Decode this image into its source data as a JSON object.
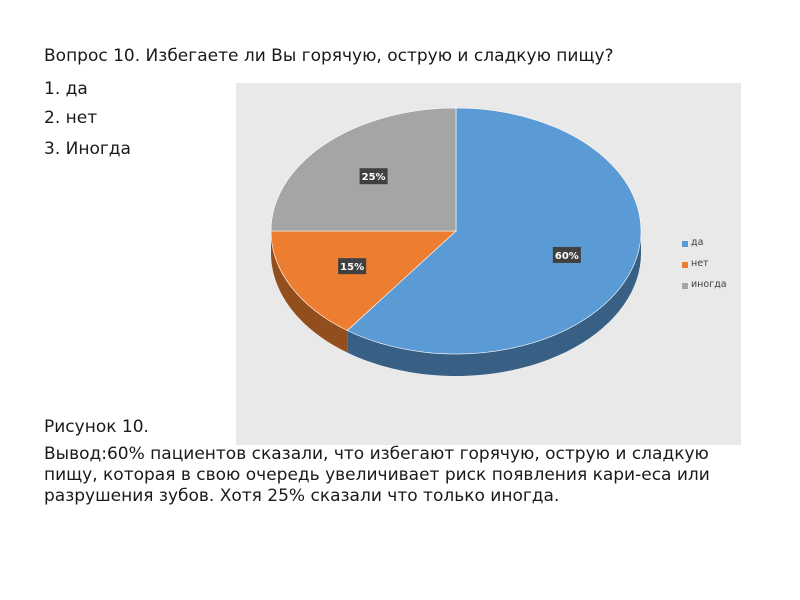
{
  "question": {
    "title": "Вопрос 10. Избегаете ли Вы горячую, острую и сладкую пищу?",
    "options": [
      "1. да",
      "2. нет",
      "3. Иногда"
    ]
  },
  "caption": "Рисунок 10.",
  "conclusion": "Вывод:60% пациентов сказали, что избегают горячую, острую и сладкую пищу, которая в свою очередь увеличивает риск появления кари-еса или разрушения зубов. Хотя 25% сказали что только иногда.",
  "chart_data": {
    "type": "pie",
    "style": "3d",
    "categories": [
      "да",
      "нет",
      "иногда"
    ],
    "values": [
      60,
      15,
      25
    ],
    "data_labels": [
      "60%",
      "15%",
      "25%"
    ],
    "colors": [
      "#5b9bd5",
      "#ed7d31",
      "#a5a5a5"
    ],
    "title": "",
    "legend_position": "right"
  }
}
